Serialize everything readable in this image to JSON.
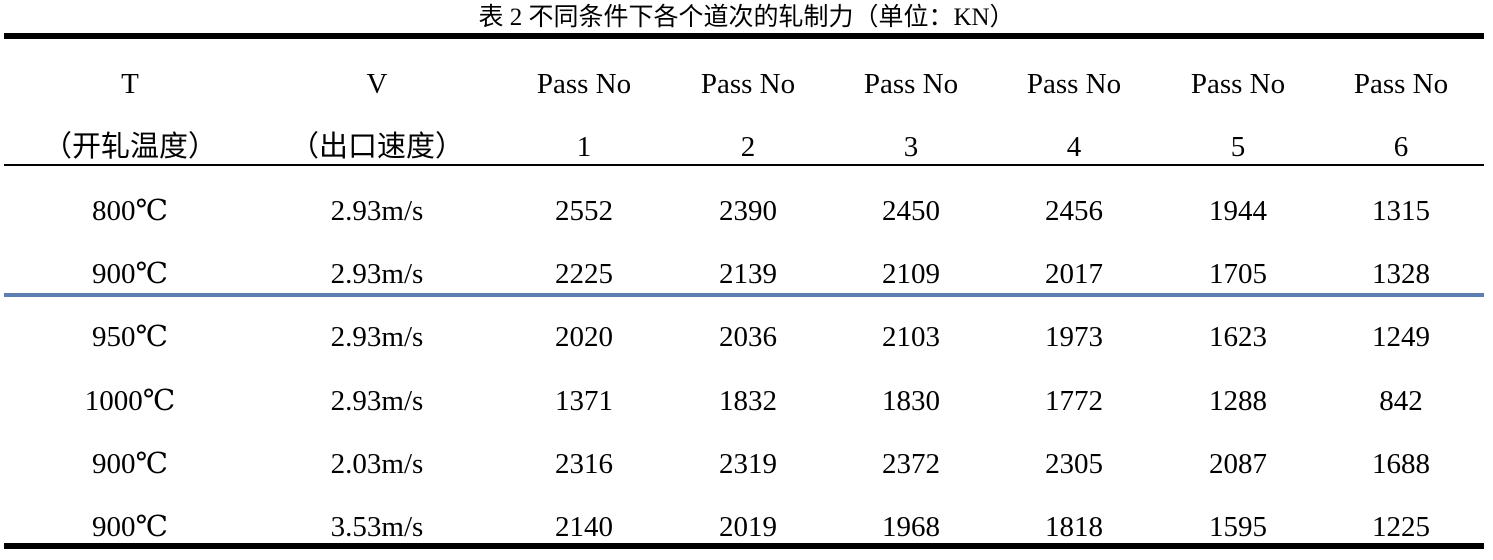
{
  "title": "表 2  不同条件下各个道次的轧制力（单位：KN）",
  "header": {
    "line1": [
      "T",
      "V",
      "Pass No",
      "Pass No",
      "Pass No",
      "Pass No",
      "Pass No",
      "Pass No"
    ],
    "line2": [
      "（开轧温度）",
      "（出口速度）",
      "1",
      "2",
      "3",
      "4",
      "5",
      "6"
    ]
  },
  "rows": [
    [
      "800℃",
      "2.93m/s",
      "2552",
      "2390",
      "2450",
      "2456",
      "1944",
      "1315"
    ],
    [
      "900℃",
      "2.93m/s",
      "2225",
      "2139",
      "2109",
      "2017",
      "1705",
      "1328"
    ],
    [
      "950℃",
      "2.93m/s",
      "2020",
      "2036",
      "2103",
      "1973",
      "1623",
      "1249"
    ],
    [
      "1000℃",
      "2.93m/s",
      "1371",
      "1832",
      "1830",
      "1772",
      "1288",
      "842"
    ],
    [
      "900℃",
      "2.03m/s",
      "2316",
      "2319",
      "2372",
      "2305",
      "2087",
      "1688"
    ],
    [
      "900℃",
      "3.53m/s",
      "2140",
      "2019",
      "1968",
      "1818",
      "1595",
      "1225"
    ]
  ],
  "colors": {
    "separator_line": "#5a7fb0",
    "rules": "#000000"
  }
}
